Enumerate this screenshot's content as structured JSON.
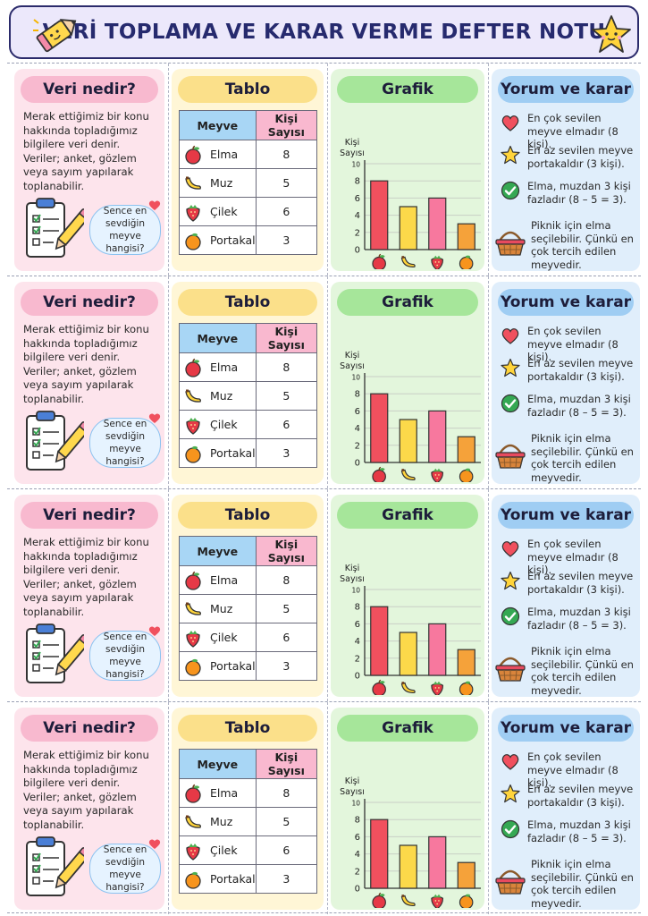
{
  "header": {
    "title": "VERİ TOPLAMA VE KARAR VERME DEFTER NOTU"
  },
  "cards": {
    "veri": {
      "title": "Veri nedir?",
      "text": "Merak ettiğimiz bir konu hakkında topladığımız bilgilere veri denir. Veriler; anket, gözlem veya sayım yapılarak toplanabilir.",
      "bubble": "Sence en sevdiğin meyve hangisi?"
    },
    "tablo": {
      "title": "Tablo",
      "header_fruit": "Meyve",
      "header_count": "Kişi Sayısı",
      "rows": [
        {
          "fruit": "Elma",
          "count": "8",
          "icon": "apple-icon"
        },
        {
          "fruit": "Muz",
          "count": "5",
          "icon": "banana-icon"
        },
        {
          "fruit": "Çilek",
          "count": "6",
          "icon": "strawberry-icon"
        },
        {
          "fruit": "Portakal",
          "count": "3",
          "icon": "orange-icon"
        }
      ]
    },
    "grafik": {
      "title": "Grafik"
    },
    "yorum": {
      "title": "Yorum ve karar",
      "items": [
        {
          "icon": "heart-icon",
          "text": "En çok sevilen meyve elmadır (8 kişi)."
        },
        {
          "icon": "star-icon",
          "text": "En az sevilen meyve portakaldır (3 kişi)."
        },
        {
          "icon": "check-icon",
          "text": "Elma, muzdan 3 kişi fazladır (8 – 5 = 3)."
        },
        {
          "icon": "basket-icon",
          "text": "Piknik için elma seçilebilir. Çünkü en çok tercih edilen meyvedir."
        }
      ]
    }
  },
  "chart_data": {
    "type": "bar",
    "categories": [
      "Elma",
      "Muz",
      "Çilek",
      "Portakal"
    ],
    "values": [
      8,
      5,
      6,
      3
    ],
    "ylabel": "Kişi Sayısı",
    "ylim": [
      0,
      10
    ],
    "yticks": [
      "0",
      "2",
      "4",
      "6",
      "8",
      "10"
    ],
    "grid": true,
    "colors": [
      "#f0505e",
      "#fcd94a",
      "#f7789e",
      "#f5a23a"
    ]
  },
  "colors": {
    "header_bg": "#ece8fb",
    "title_color": "#262a6e",
    "veri_bg": "#fde4ec",
    "tablo_bg": "#fff6d6",
    "grafik_bg": "#e3f6dc",
    "yorum_bg": "#e0eefb"
  }
}
